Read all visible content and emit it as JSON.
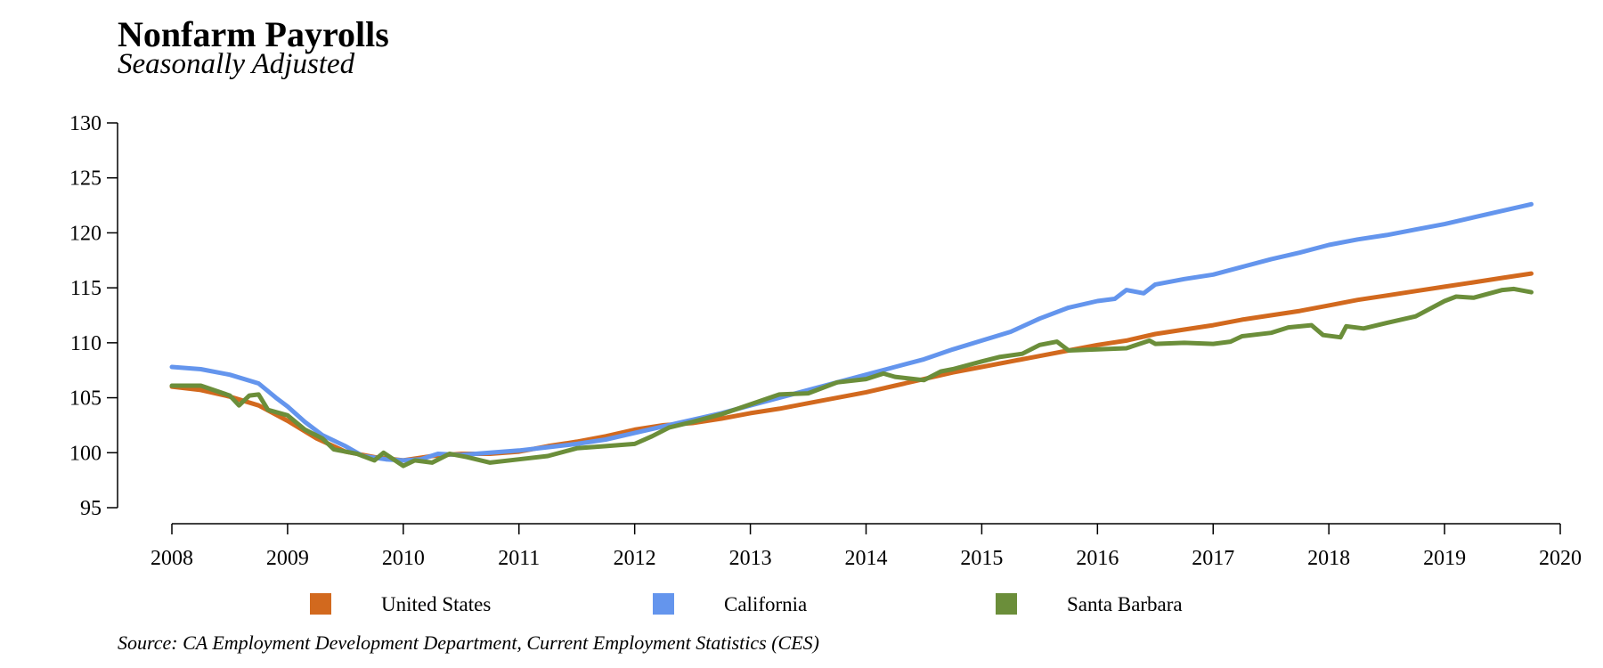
{
  "title": "Nonfarm Payrolls",
  "subtitle": "Seasonally Adjusted",
  "source": "Source: CA Employment Development Department, Current Employment Statistics (CES)",
  "chart_data": {
    "type": "line",
    "title": "Nonfarm Payrolls",
    "subtitle": "Seasonally Adjusted",
    "xlabel": "",
    "ylabel": "",
    "xlim": [
      2008,
      2020
    ],
    "ylim": [
      95,
      130
    ],
    "xticks": [
      "2008",
      "2009",
      "2010",
      "2011",
      "2012",
      "2013",
      "2014",
      "2015",
      "2016",
      "2017",
      "2018",
      "2019",
      "2020"
    ],
    "yticks": [
      "95",
      "100",
      "105",
      "110",
      "115",
      "120",
      "125",
      "130"
    ],
    "grid": false,
    "legend_position": "bottom",
    "series": [
      {
        "name": "United States",
        "color": "#D2691E",
        "points": [
          [
            2008.0,
            106.0
          ],
          [
            2008.25,
            105.7
          ],
          [
            2008.5,
            105.1
          ],
          [
            2008.75,
            104.3
          ],
          [
            2009.0,
            102.9
          ],
          [
            2009.25,
            101.3
          ],
          [
            2009.5,
            100.1
          ],
          [
            2009.75,
            99.6
          ],
          [
            2010.0,
            99.3
          ],
          [
            2010.25,
            99.7
          ],
          [
            2010.5,
            99.9
          ],
          [
            2010.75,
            99.9
          ],
          [
            2011.0,
            100.1
          ],
          [
            2011.25,
            100.6
          ],
          [
            2011.5,
            101.0
          ],
          [
            2011.75,
            101.5
          ],
          [
            2012.0,
            102.1
          ],
          [
            2012.25,
            102.5
          ],
          [
            2012.5,
            102.7
          ],
          [
            2012.75,
            103.1
          ],
          [
            2013.0,
            103.6
          ],
          [
            2013.25,
            104.0
          ],
          [
            2013.5,
            104.5
          ],
          [
            2013.75,
            105.0
          ],
          [
            2014.0,
            105.5
          ],
          [
            2014.25,
            106.1
          ],
          [
            2014.5,
            106.7
          ],
          [
            2014.75,
            107.3
          ],
          [
            2015.0,
            107.8
          ],
          [
            2015.25,
            108.3
          ],
          [
            2015.5,
            108.8
          ],
          [
            2015.75,
            109.3
          ],
          [
            2016.0,
            109.8
          ],
          [
            2016.25,
            110.2
          ],
          [
            2016.5,
            110.8
          ],
          [
            2016.75,
            111.2
          ],
          [
            2017.0,
            111.6
          ],
          [
            2017.25,
            112.1
          ],
          [
            2017.5,
            112.5
          ],
          [
            2017.75,
            112.9
          ],
          [
            2018.0,
            113.4
          ],
          [
            2018.25,
            113.9
          ],
          [
            2018.5,
            114.3
          ],
          [
            2018.75,
            114.7
          ],
          [
            2019.0,
            115.1
          ],
          [
            2019.25,
            115.5
          ],
          [
            2019.5,
            115.9
          ],
          [
            2019.75,
            116.3
          ]
        ]
      },
      {
        "name": "California",
        "color": "#6495ED",
        "points": [
          [
            2008.0,
            107.8
          ],
          [
            2008.25,
            107.6
          ],
          [
            2008.5,
            107.1
          ],
          [
            2008.75,
            106.3
          ],
          [
            2008.9,
            105.0
          ],
          [
            2009.0,
            104.2
          ],
          [
            2009.15,
            102.8
          ],
          [
            2009.3,
            101.6
          ],
          [
            2009.5,
            100.6
          ],
          [
            2009.65,
            99.7
          ],
          [
            2009.85,
            99.4
          ],
          [
            2010.0,
            99.3
          ],
          [
            2010.15,
            99.4
          ],
          [
            2010.3,
            99.9
          ],
          [
            2010.5,
            99.8
          ],
          [
            2010.75,
            100.0
          ],
          [
            2011.0,
            100.2
          ],
          [
            2011.25,
            100.5
          ],
          [
            2011.5,
            100.8
          ],
          [
            2011.75,
            101.2
          ],
          [
            2012.0,
            101.8
          ],
          [
            2012.25,
            102.4
          ],
          [
            2012.5,
            103.0
          ],
          [
            2012.75,
            103.6
          ],
          [
            2013.0,
            104.3
          ],
          [
            2013.25,
            105.0
          ],
          [
            2013.5,
            105.7
          ],
          [
            2013.75,
            106.4
          ],
          [
            2014.0,
            107.1
          ],
          [
            2014.25,
            107.8
          ],
          [
            2014.5,
            108.5
          ],
          [
            2014.75,
            109.4
          ],
          [
            2015.0,
            110.2
          ],
          [
            2015.25,
            111.0
          ],
          [
            2015.5,
            112.2
          ],
          [
            2015.75,
            113.2
          ],
          [
            2016.0,
            113.8
          ],
          [
            2016.15,
            114.0
          ],
          [
            2016.25,
            114.8
          ],
          [
            2016.4,
            114.5
          ],
          [
            2016.5,
            115.3
          ],
          [
            2016.75,
            115.8
          ],
          [
            2017.0,
            116.2
          ],
          [
            2017.25,
            116.9
          ],
          [
            2017.5,
            117.6
          ],
          [
            2017.75,
            118.2
          ],
          [
            2018.0,
            118.9
          ],
          [
            2018.25,
            119.4
          ],
          [
            2018.5,
            119.8
          ],
          [
            2018.75,
            120.3
          ],
          [
            2019.0,
            120.8
          ],
          [
            2019.25,
            121.4
          ],
          [
            2019.5,
            122.0
          ],
          [
            2019.75,
            122.6
          ]
        ]
      },
      {
        "name": "Santa Barbara",
        "color": "#6B8E3A",
        "points": [
          [
            2008.0,
            106.1
          ],
          [
            2008.25,
            106.1
          ],
          [
            2008.5,
            105.2
          ],
          [
            2008.58,
            104.3
          ],
          [
            2008.67,
            105.2
          ],
          [
            2008.75,
            105.3
          ],
          [
            2008.83,
            103.9
          ],
          [
            2009.0,
            103.4
          ],
          [
            2009.15,
            102.1
          ],
          [
            2009.3,
            101.3
          ],
          [
            2009.4,
            100.3
          ],
          [
            2009.6,
            99.9
          ],
          [
            2009.75,
            99.3
          ],
          [
            2009.83,
            100.0
          ],
          [
            2010.0,
            98.8
          ],
          [
            2010.1,
            99.3
          ],
          [
            2010.25,
            99.1
          ],
          [
            2010.4,
            99.9
          ],
          [
            2010.55,
            99.6
          ],
          [
            2010.75,
            99.1
          ],
          [
            2011.0,
            99.4
          ],
          [
            2011.25,
            99.7
          ],
          [
            2011.5,
            100.4
          ],
          [
            2011.75,
            100.6
          ],
          [
            2012.0,
            100.8
          ],
          [
            2012.15,
            101.5
          ],
          [
            2012.3,
            102.3
          ],
          [
            2012.5,
            102.8
          ],
          [
            2012.75,
            103.5
          ],
          [
            2013.0,
            104.4
          ],
          [
            2013.25,
            105.3
          ],
          [
            2013.5,
            105.4
          ],
          [
            2013.75,
            106.4
          ],
          [
            2014.0,
            106.7
          ],
          [
            2014.15,
            107.2
          ],
          [
            2014.25,
            106.9
          ],
          [
            2014.5,
            106.6
          ],
          [
            2014.65,
            107.4
          ],
          [
            2014.75,
            107.6
          ],
          [
            2015.0,
            108.3
          ],
          [
            2015.15,
            108.7
          ],
          [
            2015.35,
            109.0
          ],
          [
            2015.5,
            109.8
          ],
          [
            2015.65,
            110.1
          ],
          [
            2015.75,
            109.3
          ],
          [
            2016.0,
            109.4
          ],
          [
            2016.25,
            109.5
          ],
          [
            2016.45,
            110.2
          ],
          [
            2016.5,
            109.9
          ],
          [
            2016.75,
            110.0
          ],
          [
            2017.0,
            109.9
          ],
          [
            2017.15,
            110.1
          ],
          [
            2017.25,
            110.6
          ],
          [
            2017.5,
            110.9
          ],
          [
            2017.65,
            111.4
          ],
          [
            2017.85,
            111.6
          ],
          [
            2017.95,
            110.7
          ],
          [
            2018.1,
            110.5
          ],
          [
            2018.15,
            111.5
          ],
          [
            2018.3,
            111.3
          ],
          [
            2018.5,
            111.8
          ],
          [
            2018.75,
            112.4
          ],
          [
            2019.0,
            113.8
          ],
          [
            2019.1,
            114.2
          ],
          [
            2019.25,
            114.1
          ],
          [
            2019.5,
            114.8
          ],
          [
            2019.6,
            114.9
          ],
          [
            2019.75,
            114.6
          ]
        ]
      }
    ]
  }
}
